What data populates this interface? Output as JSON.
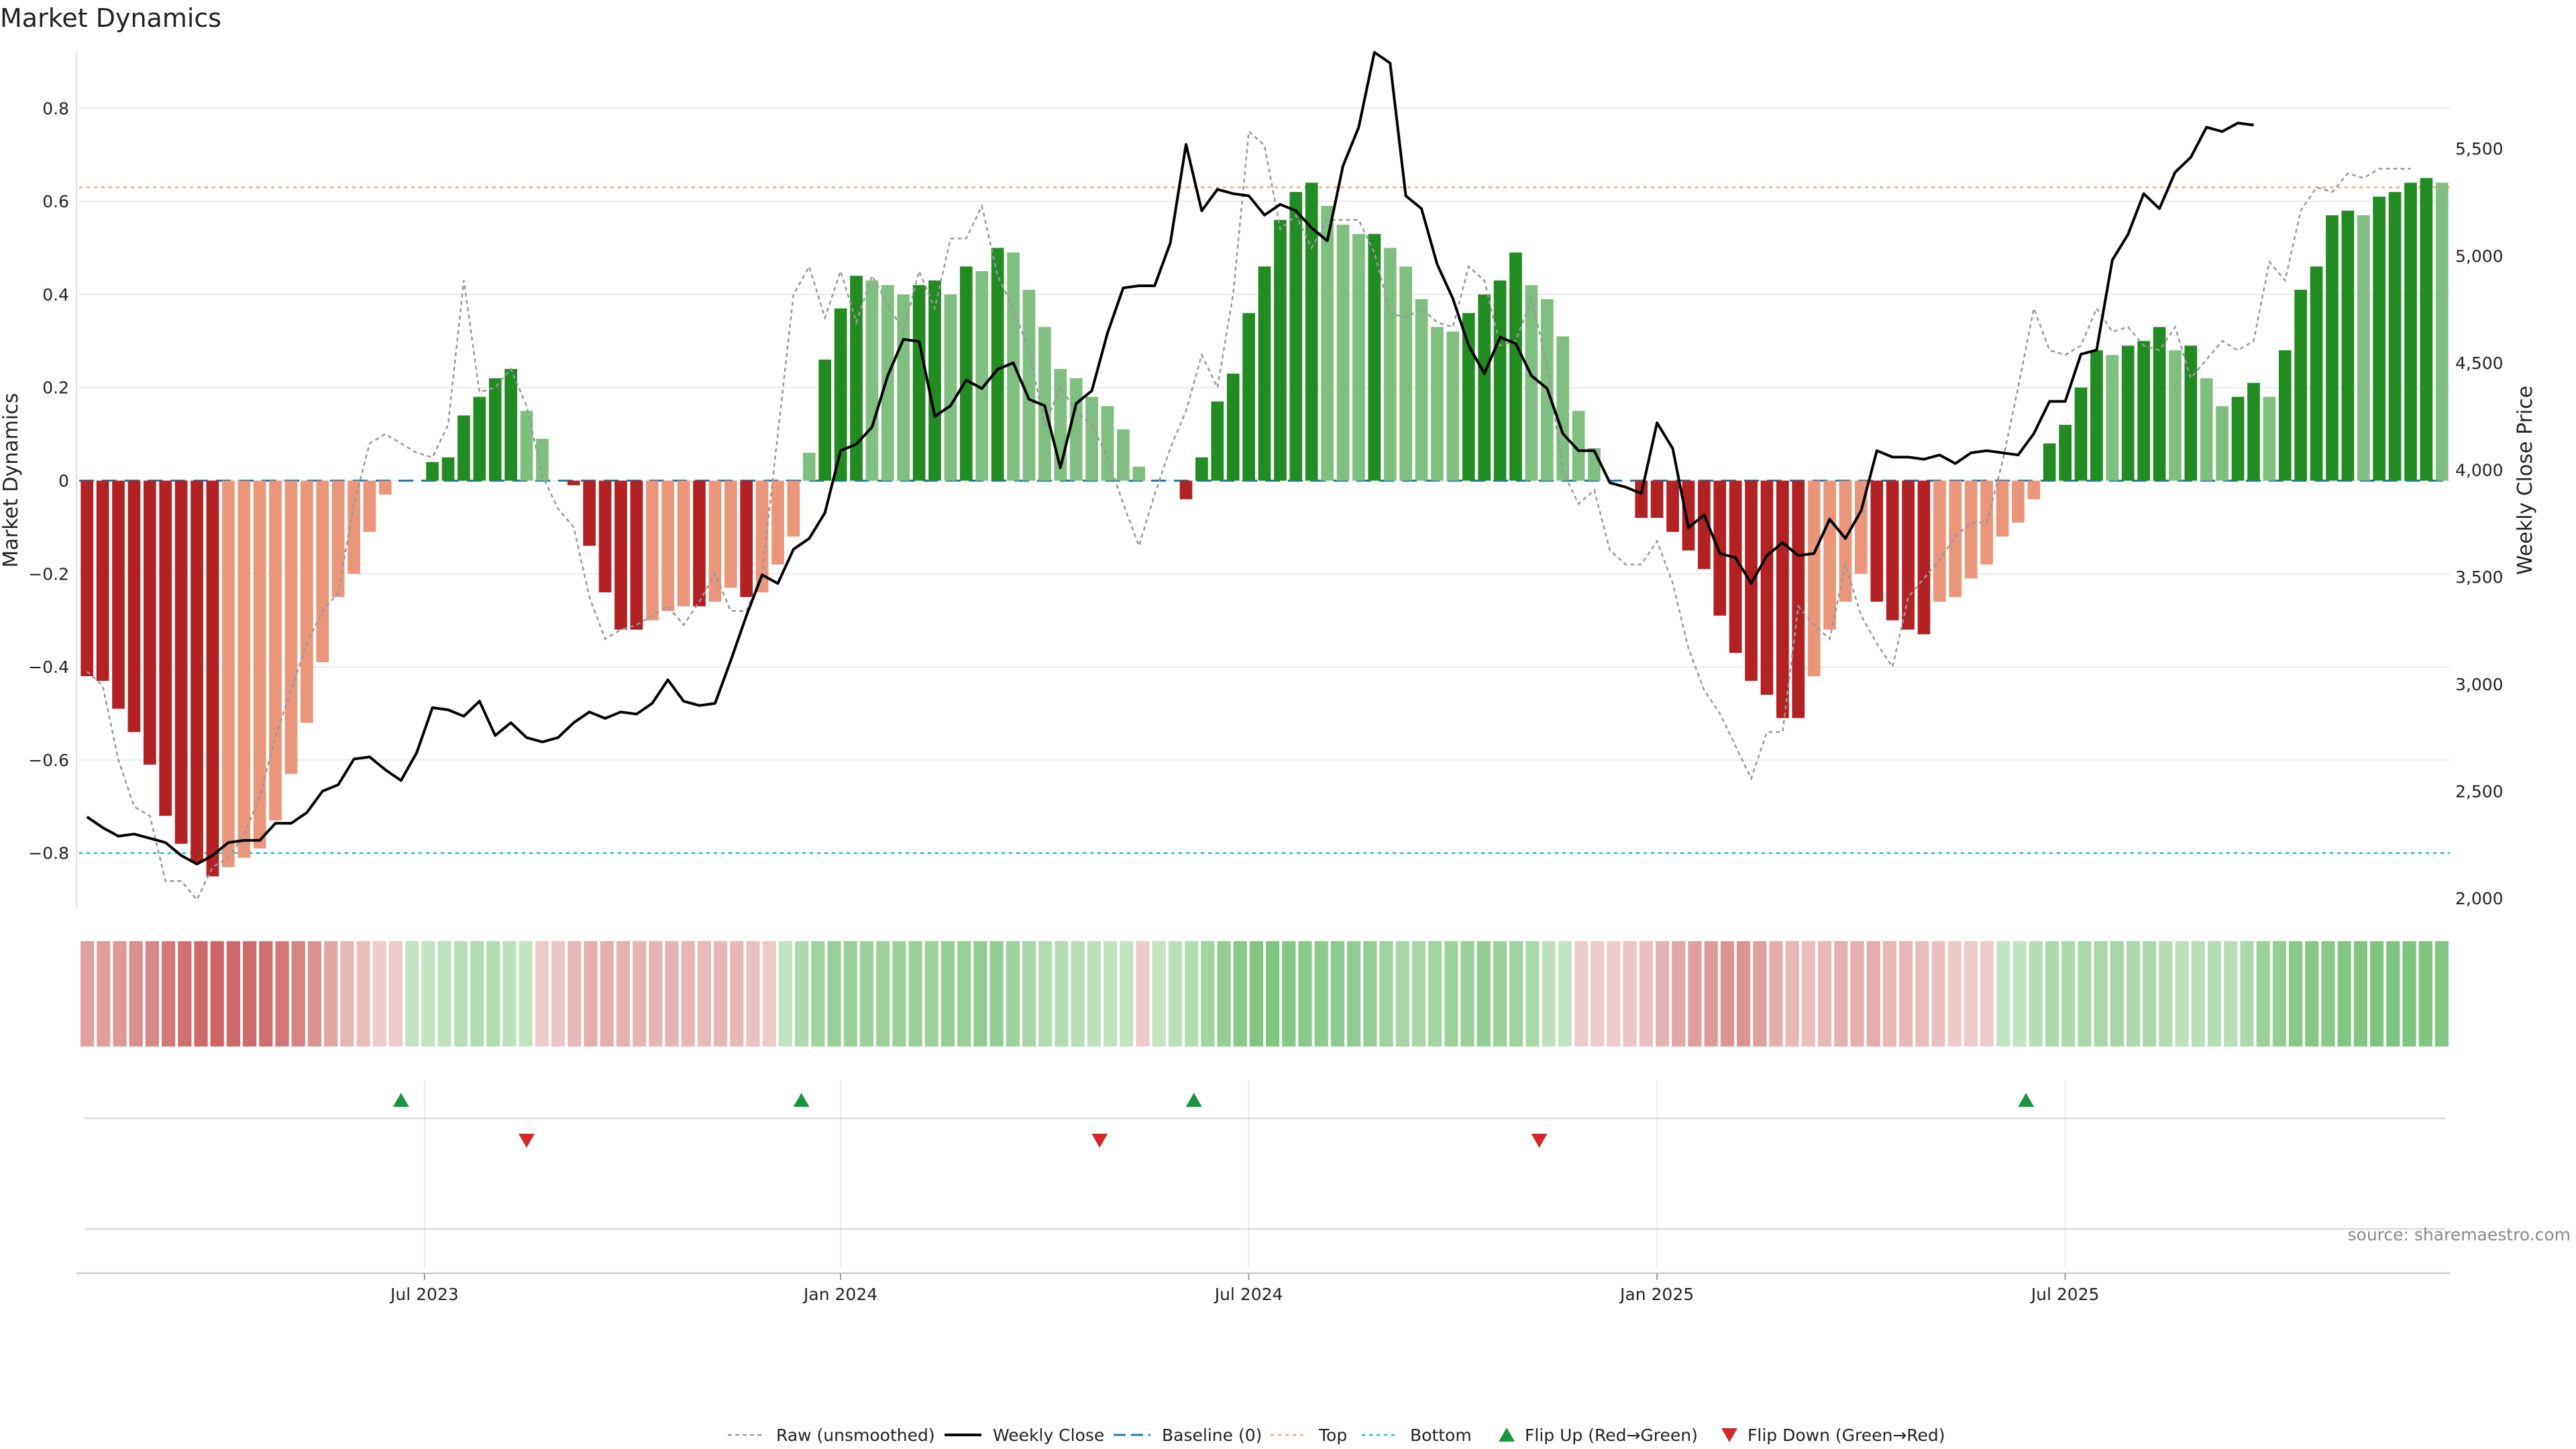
{
  "title": "Market Dynamics",
  "source": "source: sharemaestro.com",
  "chart_data": {
    "type": "bar",
    "title": "Market Dynamics",
    "xlabel": "",
    "ylabel": "Market Dynamics",
    "y2label": "Weekly Close Price",
    "ylim": [
      -0.92,
      0.92
    ],
    "y2lim": [
      1950,
      5950
    ],
    "yticks": [
      -0.8,
      -0.6,
      -0.4,
      -0.2,
      0,
      0.2,
      0.4,
      0.6,
      0.8
    ],
    "ytick_labels": [
      "−0.8",
      "−0.6",
      "−0.4",
      "−0.2",
      "0",
      "0.2",
      "0.4",
      "0.6",
      "0.8"
    ],
    "y2ticks": [
      2000,
      2500,
      3000,
      3500,
      4000,
      4500,
      5000,
      5500
    ],
    "y2tick_labels": [
      "2,000",
      "2,500",
      "3,000",
      "3,500",
      "4,000",
      "4,500",
      "5,000",
      "5,500"
    ],
    "xtick_labels": [
      "Jul 2023",
      "Jan 2024",
      "Jul 2024",
      "Jan 2025",
      "Jul 2025"
    ],
    "xtick_index": [
      22,
      48.5,
      74.5,
      100.5,
      126.5
    ],
    "top": 0.63,
    "bottom": -0.8,
    "grid": true,
    "legend_position": "bottom-center",
    "colors": {
      "strong_red": "#b22222",
      "light_red": "#e9967a",
      "strong_green": "#228b22",
      "light_green": "#7fbf7f",
      "raw": "#999999",
      "close": "#000000",
      "baseline": "#1f77b4",
      "top": "#f4a582",
      "bottom": "#17becf",
      "flip_up": "#1a9641",
      "flip_down": "#d62728"
    },
    "series": [
      {
        "name": "Market Dynamics",
        "values": [
          -0.42,
          -0.43,
          -0.49,
          -0.54,
          -0.61,
          -0.72,
          -0.78,
          -0.82,
          -0.85,
          -0.83,
          -0.81,
          -0.79,
          -0.73,
          -0.63,
          -0.52,
          -0.39,
          -0.25,
          -0.2,
          -0.11,
          -0.03,
          0,
          0,
          0.04,
          0.05,
          0.14,
          0.18,
          0.22,
          0.24,
          0.15,
          0.09,
          0,
          -0.01,
          -0.14,
          -0.24,
          -0.32,
          -0.32,
          -0.3,
          -0.28,
          -0.27,
          -0.27,
          -0.26,
          -0.23,
          -0.25,
          -0.24,
          -0.18,
          -0.12,
          0.06,
          0.26,
          0.37,
          0.44,
          0.43,
          0.42,
          0.4,
          0.42,
          0.43,
          0.4,
          0.46,
          0.45,
          0.5,
          0.49,
          0.41,
          0.33,
          0.24,
          0.22,
          0.18,
          0.16,
          0.11,
          0.03,
          0,
          0,
          -0.04,
          0.05,
          0.17,
          0.23,
          0.36,
          0.46,
          0.56,
          0.62,
          0.64,
          0.59,
          0.55,
          0.53,
          0.53,
          0.5,
          0.46,
          0.39,
          0.33,
          0.32,
          0.36,
          0.4,
          0.43,
          0.49,
          0.42,
          0.39,
          0.31,
          0.15,
          0.07,
          0,
          0,
          -0.08,
          -0.08,
          -0.11,
          -0.15,
          -0.19,
          -0.29,
          -0.37,
          -0.43,
          -0.46,
          -0.51,
          -0.51,
          -0.42,
          -0.32,
          -0.26,
          -0.2,
          -0.26,
          -0.3,
          -0.32,
          -0.33,
          -0.26,
          -0.25,
          -0.21,
          -0.18,
          -0.12,
          -0.09,
          -0.04,
          0.08,
          0.12,
          0.2,
          0.28,
          0.27,
          0.29,
          0.3,
          0.33,
          0.28,
          0.29,
          0.22,
          0.16,
          0.18,
          0.21,
          0.18,
          0.28,
          0.41,
          0.46,
          0.57,
          0.58,
          0.57,
          0.61,
          0.62,
          0.64,
          0.65,
          0.64
        ]
      },
      {
        "name": "Raw (unsmoothed)",
        "values": [
          -0.41,
          -0.44,
          -0.6,
          -0.7,
          -0.72,
          -0.86,
          -0.86,
          -0.9,
          -0.83,
          -0.81,
          -0.76,
          -0.68,
          -0.55,
          -0.45,
          -0.35,
          -0.28,
          -0.24,
          -0.05,
          0.08,
          0.1,
          0.08,
          0.06,
          0.05,
          0.12,
          0.43,
          0.19,
          0.2,
          0.24,
          0.16,
          0.01,
          -0.06,
          -0.1,
          -0.25,
          -0.34,
          -0.32,
          -0.31,
          -0.29,
          -0.27,
          -0.31,
          -0.26,
          -0.2,
          -0.28,
          -0.28,
          -0.2,
          0.1,
          0.4,
          0.46,
          0.35,
          0.45,
          0.34,
          0.44,
          0.38,
          0.32,
          0.45,
          0.37,
          0.52,
          0.52,
          0.59,
          0.44,
          0.37,
          0.28,
          0.12,
          0.2,
          0.15,
          0.12,
          0.05,
          -0.05,
          -0.14,
          -0.03,
          0.07,
          0.15,
          0.27,
          0.2,
          0.4,
          0.75,
          0.72,
          0.54,
          0.57,
          0.5,
          0.56,
          0.56,
          0.56,
          0.49,
          0.36,
          0.35,
          0.37,
          0.34,
          0.33,
          0.46,
          0.43,
          0.29,
          0.3,
          0.39,
          0.25,
          0.02,
          -0.05,
          -0.02,
          -0.15,
          -0.18,
          -0.18,
          -0.13,
          -0.22,
          -0.36,
          -0.45,
          -0.5,
          -0.57,
          -0.64,
          -0.54,
          -0.54,
          -0.27,
          -0.31,
          -0.34,
          -0.18,
          -0.29,
          -0.35,
          -0.4,
          -0.25,
          -0.21,
          -0.17,
          -0.12,
          -0.09,
          -0.09,
          0.04,
          0.2,
          0.37,
          0.28,
          0.27,
          0.29,
          0.37,
          0.32,
          0.33,
          0.29,
          0.28,
          0.33,
          0.22,
          0.26,
          0.3,
          0.28,
          0.3,
          0.47,
          0.43,
          0.58,
          0.63,
          0.62,
          0.66,
          0.65,
          0.67,
          0.67,
          0.67
        ]
      },
      {
        "name": "Weekly Close",
        "values": [
          2380,
          2330,
          2290,
          2300,
          2280,
          2260,
          2200,
          2160,
          2200,
          2260,
          2270,
          2270,
          2350,
          2350,
          2400,
          2500,
          2530,
          2650,
          2660,
          2600,
          2550,
          2680,
          2890,
          2880,
          2850,
          2920,
          2760,
          2820,
          2750,
          2730,
          2750,
          2820,
          2870,
          2840,
          2870,
          2860,
          2910,
          3020,
          2920,
          2900,
          2910,
          3110,
          3320,
          3510,
          3470,
          3630,
          3680,
          3800,
          4090,
          4120,
          4200,
          4440,
          4610,
          4600,
          4250,
          4300,
          4420,
          4380,
          4470,
          4500,
          4330,
          4300,
          4010,
          4310,
          4370,
          4640,
          4850,
          4860,
          4860,
          5060,
          5520,
          5210,
          5310,
          5290,
          5280,
          5190,
          5240,
          5210,
          5130,
          5070,
          5420,
          5600,
          5950,
          5900,
          5280,
          5220,
          4960,
          4800,
          4580,
          4450,
          4620,
          4590,
          4440,
          4380,
          4170,
          4090,
          4090,
          3940,
          3920,
          3890,
          4220,
          4100,
          3730,
          3790,
          3610,
          3590,
          3470,
          3600,
          3660,
          3600,
          3610,
          3770,
          3680,
          3810,
          4090,
          4060,
          4060,
          4050,
          4070,
          4030,
          4080,
          4090,
          4080,
          4070,
          4170,
          4320,
          4320,
          4540,
          4560,
          4980,
          5100,
          5290,
          5220,
          5390,
          5460,
          5600,
          5580,
          5620,
          5610
        ]
      }
    ],
    "regime_strip": [
      -0.42,
      -0.43,
      -0.49,
      -0.54,
      -0.61,
      -0.72,
      -0.78,
      -0.82,
      -0.85,
      -0.83,
      -0.81,
      -0.79,
      -0.73,
      -0.63,
      -0.52,
      -0.39,
      -0.25,
      -0.2,
      -0.11,
      -0.03,
      0.04,
      0.05,
      0.14,
      0.18,
      0.22,
      0.24,
      0.15,
      0.09,
      -0.01,
      -0.14,
      -0.24,
      -0.32,
      -0.32,
      -0.3,
      -0.28,
      -0.27,
      -0.27,
      -0.26,
      -0.23,
      -0.25,
      -0.24,
      -0.18,
      -0.12,
      0.06,
      0.26,
      0.37,
      0.44,
      0.43,
      0.42,
      0.4,
      0.42,
      0.43,
      0.4,
      0.46,
      0.45,
      0.5,
      0.49,
      0.41,
      0.33,
      0.24,
      0.22,
      0.18,
      0.16,
      0.11,
      0.03,
      -0.04,
      0.05,
      0.17,
      0.23,
      0.36,
      0.46,
      0.56,
      0.62,
      0.64,
      0.59,
      0.55,
      0.53,
      0.53,
      0.5,
      0.46,
      0.39,
      0.33,
      0.32,
      0.36,
      0.4,
      0.43,
      0.49,
      0.42,
      0.39,
      0.31,
      0.15,
      0.07,
      -0.08,
      -0.08,
      -0.11,
      -0.15,
      -0.19,
      -0.29,
      -0.37,
      -0.43,
      -0.46,
      -0.51,
      -0.51,
      -0.42,
      -0.32,
      -0.26,
      -0.2,
      -0.26,
      -0.3,
      -0.32,
      -0.33,
      -0.26,
      -0.25,
      -0.21,
      -0.18,
      -0.12,
      -0.09,
      -0.04,
      0.08,
      0.12,
      0.2,
      0.28,
      0.27,
      0.29,
      0.3,
      0.33,
      0.28,
      0.29,
      0.22,
      0.16,
      0.18,
      0.21,
      0.18,
      0.28,
      0.41,
      0.46,
      0.57,
      0.58,
      0.57,
      0.61,
      0.62,
      0.64,
      0.65,
      0.64,
      0.62,
      0.6
    ],
    "flip_up_index": [
      20.5,
      46,
      71,
      124
    ],
    "flip_down_index": [
      28.5,
      65,
      93
    ],
    "legend": [
      "Raw (unsmoothed)",
      "Weekly Close",
      "Baseline (0)",
      "Top",
      "Bottom",
      "Flip Up (Red→Green)",
      "Flip Down (Green→Red)"
    ]
  }
}
